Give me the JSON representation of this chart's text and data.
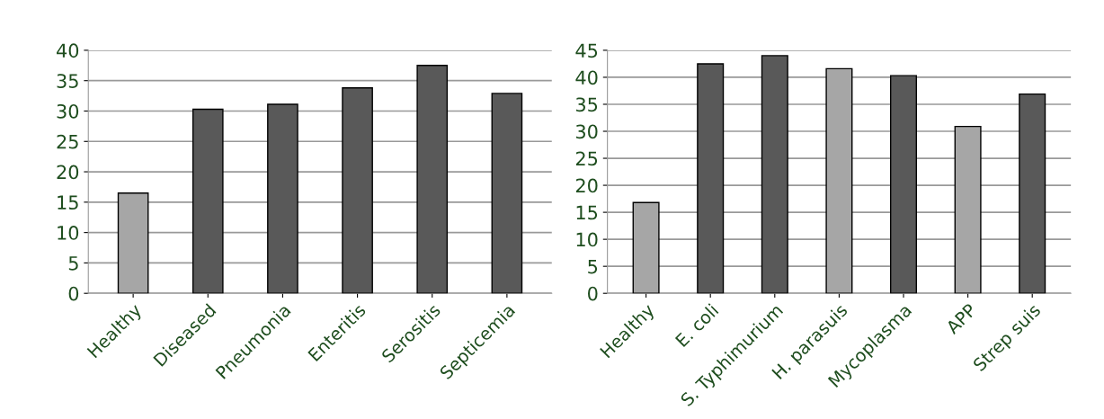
{
  "chart_data": [
    {
      "type": "bar",
      "categories": [
        "Healthy",
        "Diseased",
        "Pneumonia",
        "Enteritis",
        "Serositis",
        "Septicemia"
      ],
      "values": [
        16.5,
        30.3,
        31.1,
        33.8,
        37.5,
        32.9
      ],
      "colors": [
        "#a6a6a6",
        "#595959",
        "#595959",
        "#595959",
        "#595959",
        "#595959"
      ],
      "ylim": [
        0,
        40
      ],
      "yticks": [
        0,
        5,
        10,
        15,
        20,
        25,
        30,
        35,
        40
      ],
      "grid": "y"
    },
    {
      "type": "bar",
      "categories": [
        "Healthy",
        "E. coli",
        "S. Typhimurium",
        "H. parasuis",
        "Mycoplasma",
        "APP",
        "Strep suis"
      ],
      "values": [
        16.8,
        42.5,
        44.0,
        41.6,
        40.3,
        30.9,
        36.9
      ],
      "colors": [
        "#a6a6a6",
        "#595959",
        "#595959",
        "#a6a6a6",
        "#595959",
        "#a6a6a6",
        "#595959"
      ],
      "ylim": [
        0,
        45
      ],
      "yticks": [
        0,
        5,
        10,
        15,
        20,
        25,
        30,
        35,
        40,
        45
      ],
      "grid": "y"
    }
  ]
}
